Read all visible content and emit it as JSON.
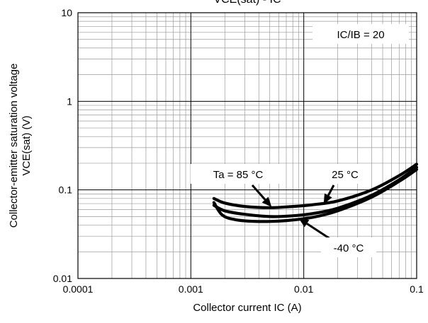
{
  "chart_data": {
    "type": "line",
    "title": "VCE(sat) - IC",
    "xlabel": "Collector current IC (A)",
    "ylabel_line1": "Collector-emitter saturation voltage",
    "ylabel_line2": "VCE(sat) (V)",
    "x_scale": "log",
    "y_scale": "log",
    "xlim": [
      0.0001,
      0.1
    ],
    "ylim": [
      0.01,
      10
    ],
    "x_ticks": [
      0.0001,
      0.001,
      0.01,
      0.1
    ],
    "x_tick_labels": [
      "0.0001",
      "0.001",
      "0.01",
      "0.1"
    ],
    "y_ticks": [
      0.01,
      0.1,
      1,
      10
    ],
    "y_tick_labels": [
      "0.01",
      "0.1",
      "1",
      "10"
    ],
    "grid": true,
    "condition_label": "IC/IB = 20",
    "series": [
      {
        "name": "Ta = 85 °C",
        "x": [
          0.0016,
          0.002,
          0.003,
          0.005,
          0.008,
          0.012,
          0.02,
          0.04,
          0.07,
          0.1
        ],
        "y": [
          0.067,
          0.058,
          0.053,
          0.05,
          0.051,
          0.054,
          0.062,
          0.087,
          0.13,
          0.18
        ]
      },
      {
        "name": "25 °C",
        "x": [
          0.0016,
          0.002,
          0.003,
          0.005,
          0.008,
          0.012,
          0.02,
          0.04,
          0.07,
          0.1
        ],
        "y": [
          0.08,
          0.071,
          0.065,
          0.063,
          0.065,
          0.068,
          0.075,
          0.1,
          0.145,
          0.195
        ]
      },
      {
        "name": "-40 °C",
        "x": [
          0.0016,
          0.0019,
          0.0025,
          0.004,
          0.007,
          0.012,
          0.02,
          0.04,
          0.07,
          0.1
        ],
        "y": [
          0.072,
          0.052,
          0.046,
          0.044,
          0.045,
          0.049,
          0.058,
          0.083,
          0.125,
          0.17
        ]
      }
    ],
    "annotations": [
      {
        "text": "Ta = 85 °C",
        "series": "Ta = 85 °C",
        "x": 0.0052,
        "y": 0.064
      },
      {
        "text": "25 °C",
        "series": "25 °C",
        "x": 0.015,
        "y": 0.069
      },
      {
        "text": "-40 °C",
        "series": "-40 °C",
        "x": 0.009,
        "y": 0.048
      }
    ]
  }
}
